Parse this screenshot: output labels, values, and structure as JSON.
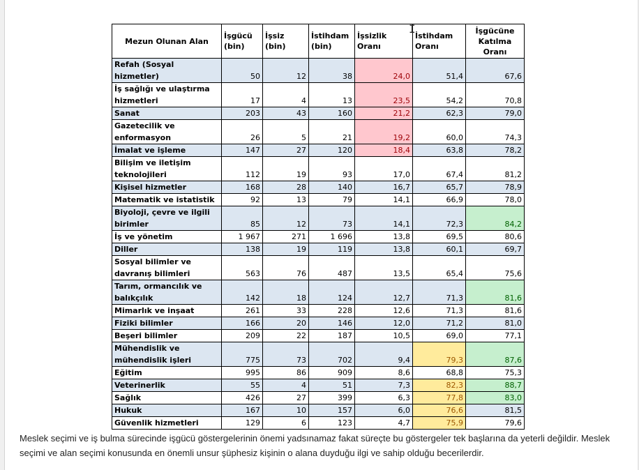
{
  "table": {
    "headers": [
      "Mezun Olunan Alan",
      "İşgücü (bin)",
      "İşsiz (bin)",
      "İstihdam (bin)",
      "İşsizlik Oranı",
      "İstihdam Oranı",
      "İşgücüne Katılma Oranı"
    ],
    "rows": [
      {
        "name": "Refah (Sosyal hizmetler)",
        "isgucu": "50",
        "issiz": "12",
        "istihdam": "38",
        "issizlik_orani": "24,0",
        "istihdam_orani": "51,4",
        "katilma_orani": "67,6"
      },
      {
        "name": "İş sağlığı ve ulaştırma hizmetleri",
        "isgucu": "17",
        "issiz": "4",
        "istihdam": "13",
        "issizlik_orani": "23,5",
        "istihdam_orani": "54,2",
        "katilma_orani": "70,8"
      },
      {
        "name": "Sanat",
        "isgucu": "203",
        "issiz": "43",
        "istihdam": "160",
        "issizlik_orani": "21,2",
        "istihdam_orani": "62,3",
        "katilma_orani": "79,0"
      },
      {
        "name": "Gazetecilik ve enformasyon",
        "isgucu": "26",
        "issiz": "5",
        "istihdam": "21",
        "issizlik_orani": "19,2",
        "istihdam_orani": "60,0",
        "katilma_orani": "74,3"
      },
      {
        "name": "İmalat ve işleme",
        "isgucu": "147",
        "issiz": "27",
        "istihdam": "120",
        "issizlik_orani": "18,4",
        "istihdam_orani": "63,8",
        "katilma_orani": "78,2"
      },
      {
        "name": "Bilişim ve iletişim teknolojileri",
        "isgucu": "112",
        "issiz": "19",
        "istihdam": "93",
        "issizlik_orani": "17,0",
        "istihdam_orani": "67,4",
        "katilma_orani": "81,2"
      },
      {
        "name": "Kişisel hizmetler",
        "isgucu": "168",
        "issiz": "28",
        "istihdam": "140",
        "issizlik_orani": "16,7",
        "istihdam_orani": "65,7",
        "katilma_orani": "78,9"
      },
      {
        "name": "Matematik ve istatistik",
        "isgucu": "92",
        "issiz": "13",
        "istihdam": "79",
        "issizlik_orani": "14,1",
        "istihdam_orani": "66,9",
        "katilma_orani": "78,0"
      },
      {
        "name": "Biyoloji, çevre ve ilgili birimler",
        "isgucu": "85",
        "issiz": "12",
        "istihdam": "73",
        "issizlik_orani": "14,1",
        "istihdam_orani": "72,3",
        "katilma_orani": "84,2"
      },
      {
        "name": "İş ve yönetim",
        "isgucu": "1 967",
        "issiz": "271",
        "istihdam": "1 696",
        "issizlik_orani": "13,8",
        "istihdam_orani": "69,5",
        "katilma_orani": "80,6"
      },
      {
        "name": "Diller",
        "isgucu": "138",
        "issiz": "19",
        "istihdam": "119",
        "issizlik_orani": "13,8",
        "istihdam_orani": "60,1",
        "katilma_orani": "69,7"
      },
      {
        "name": "Sosyal bilimler ve davranış bilimleri",
        "isgucu": "563",
        "issiz": "76",
        "istihdam": "487",
        "issizlik_orani": "13,5",
        "istihdam_orani": "65,4",
        "katilma_orani": "75,6"
      },
      {
        "name": "Tarım, ormancılık ve balıkçılık",
        "isgucu": "142",
        "issiz": "18",
        "istihdam": "124",
        "issizlik_orani": "12,7",
        "istihdam_orani": "71,3",
        "katilma_orani": "81,6"
      },
      {
        "name": "Mimarlık ve inşaat",
        "isgucu": "261",
        "issiz": "33",
        "istihdam": "228",
        "issizlik_orani": "12,6",
        "istihdam_orani": "71,3",
        "katilma_orani": "81,6"
      },
      {
        "name": "Fiziki bilimler",
        "isgucu": "166",
        "issiz": "20",
        "istihdam": "146",
        "issizlik_orani": "12,0",
        "istihdam_orani": "71,2",
        "katilma_orani": "81,0"
      },
      {
        "name": "Beşeri bilimler",
        "isgucu": "209",
        "issiz": "22",
        "istihdam": "187",
        "issizlik_orani": "10,5",
        "istihdam_orani": "69,0",
        "katilma_orani": "77,1"
      },
      {
        "name": "Mühendislik ve mühendislik işleri",
        "isgucu": "775",
        "issiz": "73",
        "istihdam": "702",
        "issizlik_orani": "9,4",
        "istihdam_orani": "79,3",
        "katilma_orani": "87,6"
      },
      {
        "name": "Eğitim",
        "isgucu": "995",
        "issiz": "86",
        "istihdam": "909",
        "issizlik_orani": "8,6",
        "istihdam_orani": "68,8",
        "katilma_orani": "75,3"
      },
      {
        "name": "Veterinerlik",
        "isgucu": "55",
        "issiz": "4",
        "istihdam": "51",
        "issizlik_orani": "7,3",
        "istihdam_orani": "82,3",
        "katilma_orani": "88,7"
      },
      {
        "name": "Sağlık",
        "isgucu": "426",
        "issiz": "27",
        "istihdam": "399",
        "issizlik_orani": "6,3",
        "istihdam_orani": "77,8",
        "katilma_orani": "83,0"
      },
      {
        "name": "Hukuk",
        "isgucu": "167",
        "issiz": "10",
        "istihdam": "157",
        "issizlik_orani": "6,0",
        "istihdam_orani": "76,6",
        "katilma_orani": "81,5"
      },
      {
        "name": "Güvenlik hizmetleri",
        "isgucu": "129",
        "issiz": "6",
        "istihdam": "123",
        "issizlik_orani": "4,7",
        "istihdam_orani": "75,9",
        "katilma_orani": "79,6"
      }
    ]
  },
  "paragraph": "Meslek seçimi ve iş bulma sürecinde işgücü göstergelerinin önemi yadsınamaz fakat süreçte bu göstergeler tek başlarına da yeterli değildir. Meslek seçimi ve alan seçimi konusunda en önemli unsur şüphesiz kişinin o alana duyduğu ilgi ve sahip olduğu becerilerdir.",
  "colors": {
    "row_shade": "#dce6f1",
    "red_fill": "#ffc7ce",
    "red_text": "#9c0006",
    "green_fill": "#c6efce",
    "green_text": "#006100",
    "yellow_fill": "#ffeb9c",
    "yellow_text": "#9c5700"
  }
}
